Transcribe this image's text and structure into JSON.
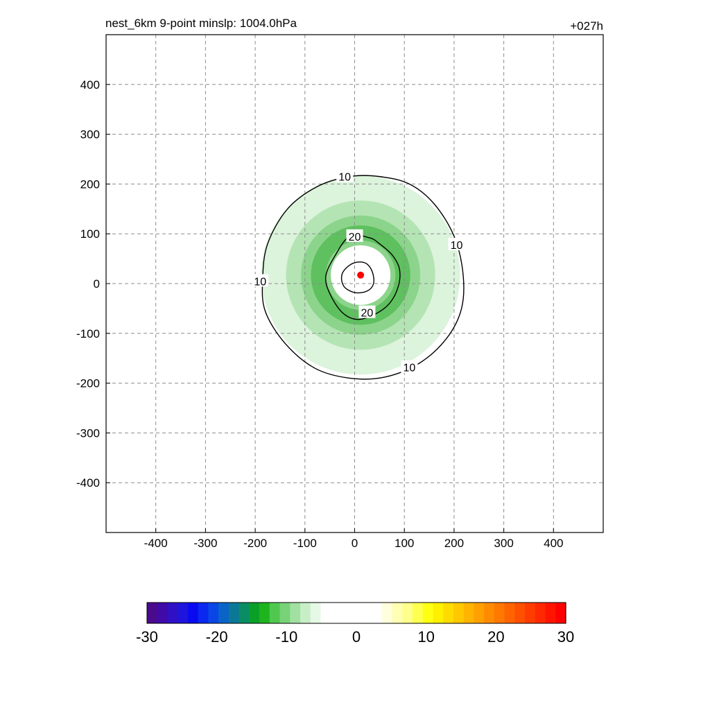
{
  "figure": {
    "title": "nest_6km  9-point minslp: 1004.0hPa",
    "time_label": "+027h"
  },
  "chart_data": {
    "type": "contour",
    "title": "nest_6km  9-point minslp: 1004.0hPa",
    "time_label": "+027h",
    "xlim": [
      -500,
      500
    ],
    "ylim": [
      -500,
      500
    ],
    "xticks": [
      -400,
      -300,
      -200,
      -100,
      0,
      100,
      200,
      300,
      400
    ],
    "yticks": [
      400,
      300,
      200,
      100,
      0,
      -100,
      -200,
      -300,
      -400
    ],
    "xlabel": "",
    "ylabel": "",
    "grid": true,
    "storm_center": {
      "x": 12,
      "y": 17
    },
    "contours": [
      {
        "level": 10,
        "label": "10",
        "points": [
          [
            -10,
            215
          ],
          [
            50,
            215
          ],
          [
            110,
            200
          ],
          [
            160,
            160
          ],
          [
            200,
            95
          ],
          [
            218,
            20
          ],
          [
            215,
            -50
          ],
          [
            185,
            -110
          ],
          [
            130,
            -160
          ],
          [
            60,
            -188
          ],
          [
            -10,
            -190
          ],
          [
            -80,
            -170
          ],
          [
            -140,
            -120
          ],
          [
            -180,
            -55
          ],
          [
            -185,
            10
          ],
          [
            -175,
            80
          ],
          [
            -135,
            150
          ],
          [
            -75,
            195
          ]
        ],
        "label_positions": [
          [
            -20,
            215
          ],
          [
            205,
            78
          ],
          [
            -190,
            5
          ],
          [
            110,
            -168
          ]
        ]
      },
      {
        "level": 20,
        "label": "20",
        "points": [
          [
            -10,
            95
          ],
          [
            30,
            92
          ],
          [
            50,
            80
          ],
          [
            75,
            58
          ],
          [
            90,
            30
          ],
          [
            88,
            -5
          ],
          [
            70,
            -40
          ],
          [
            40,
            -62
          ],
          [
            5,
            -72
          ],
          [
            -25,
            -58
          ],
          [
            -50,
            -20
          ],
          [
            -58,
            15
          ],
          [
            -40,
            55
          ]
        ],
        "label_positions": [
          [
            0,
            95
          ],
          [
            25,
            -58
          ]
        ]
      },
      {
        "level": 20,
        "label": "",
        "points": [
          [
            -5,
            40
          ],
          [
            20,
            42
          ],
          [
            35,
            25
          ],
          [
            38,
            0
          ],
          [
            25,
            -15
          ],
          [
            0,
            -18
          ],
          [
            -22,
            -5
          ],
          [
            -25,
            20
          ]
        ],
        "label_positions": []
      }
    ],
    "shaded_rings": [
      {
        "level": -4,
        "inner": 130,
        "outer": 200,
        "color": "#dcf3dc"
      },
      {
        "level": -6,
        "inner": 85,
        "outer": 150,
        "color": "#b4e4b4"
      },
      {
        "level": -8,
        "inner": 60,
        "outer": 120,
        "color": "#8cd48c"
      },
      {
        "level": -10,
        "inner": 70,
        "outer": 100,
        "color": "#5ec05e"
      }
    ],
    "colorbar": {
      "min": -30,
      "max": 30,
      "tick_labels": [
        "-30",
        "-20",
        "-10",
        "0",
        "10",
        "20",
        "30"
      ],
      "colors": [
        "#4a0a8c",
        "#3f0aa8",
        "#3010c4",
        "#1e14dc",
        "#0a0af0",
        "#0a28f0",
        "#0a46e6",
        "#0a64c8",
        "#0a7896",
        "#0a8c64",
        "#0aa028",
        "#1eb41e",
        "#50c850",
        "#78d278",
        "#a0e0a0",
        "#c8eec8",
        "#e6f8e6",
        "#ffffff",
        "#ffffff",
        "#ffffff",
        "#ffffff",
        "#ffffff",
        "#ffffff",
        "#ffffdc",
        "#ffffb4",
        "#ffff8c",
        "#ffff50",
        "#ffff14",
        "#fff000",
        "#ffdc00",
        "#ffc800",
        "#ffb400",
        "#ffa000",
        "#ff8c00",
        "#ff7800",
        "#ff6400",
        "#ff5000",
        "#ff3c00",
        "#ff2800",
        "#ff1400",
        "#ff0000"
      ]
    }
  }
}
